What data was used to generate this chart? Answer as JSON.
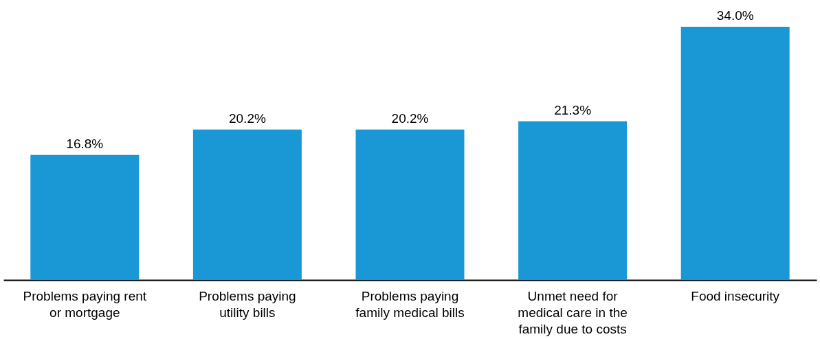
{
  "chart_data": {
    "type": "bar",
    "categories": [
      "Problems paying rent or mortgage",
      "Problems paying utility bills",
      "Problems paying family medical bills",
      "Unmet need for medical care in the family due to costs",
      "Food insecurity"
    ],
    "values": [
      16.8,
      20.2,
      20.2,
      21.3,
      34.0
    ],
    "value_labels": [
      "16.8%",
      "20.2%",
      "20.2%",
      "21.3%",
      "34.0%"
    ],
    "color": "#1a98d5",
    "grid": false
  }
}
